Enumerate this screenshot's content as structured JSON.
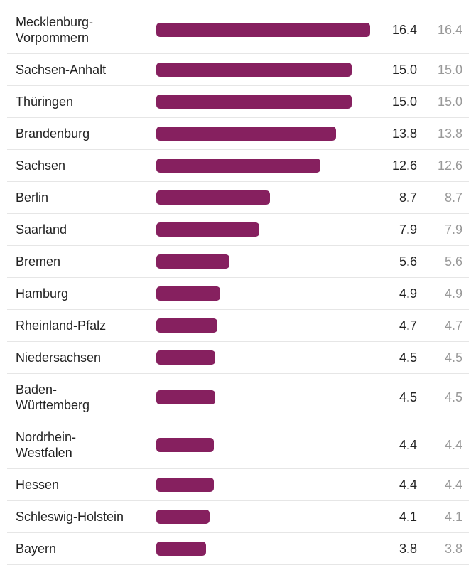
{
  "chart_data": {
    "type": "bar",
    "categories": [
      "Mecklenburg-Vorpommern",
      "Sachsen-Anhalt",
      "Thüringen",
      "Brandenburg",
      "Sachsen",
      "Berlin",
      "Saarland",
      "Bremen",
      "Hamburg",
      "Rheinland-Pfalz",
      "Niedersachsen",
      "Baden-Württemberg",
      "Nordrhein-Westfalen",
      "Hessen",
      "Schleswig-Holstein",
      "Bayern"
    ],
    "series": [
      {
        "color": "#86205f",
        "values": [
          16.4,
          15.0,
          15.0,
          13.8,
          12.6,
          8.7,
          7.9,
          5.6,
          4.9,
          4.7,
          4.5,
          4.5,
          4.4,
          4.4,
          4.1,
          3.8
        ],
        "value_labels": [
          "16.4",
          "15.0",
          "15.0",
          "13.8",
          "12.6",
          "8.7",
          "7.9",
          "5.6",
          "4.9",
          "4.7",
          "4.5",
          "4.5",
          "4.4",
          "4.4",
          "4.1",
          "3.8"
        ]
      },
      {
        "color": "#999999",
        "values": [
          16.4,
          15.0,
          15.0,
          13.8,
          12.6,
          8.7,
          7.9,
          5.6,
          4.9,
          4.7,
          4.5,
          4.5,
          4.4,
          4.4,
          4.1,
          3.8
        ],
        "value_labels": [
          "16.4",
          "15.0",
          "15.0",
          "13.8",
          "12.6",
          "8.7",
          "7.9",
          "5.6",
          "4.9",
          "4.7",
          "4.5",
          "4.5",
          "4.4",
          "4.4",
          "4.1",
          "3.8"
        ]
      }
    ]
  }
}
